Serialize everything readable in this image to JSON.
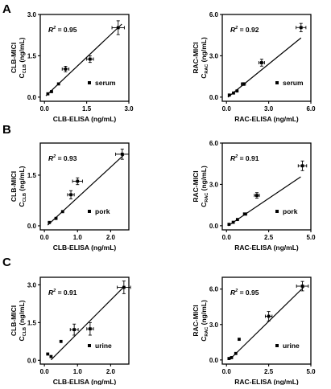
{
  "panel_letters": [
    "A",
    "B",
    "C"
  ],
  "chart_data": [
    {
      "type": "scatter",
      "row": 0,
      "col": 0,
      "ylabel_main": "CLB-MICI",
      "ylabel_c": "C",
      "ylabel_sub": "CLB",
      "ylabel_unit": "(ng/mL)",
      "xlabel": "CLB-ELISA (ng/mL)",
      "xlim": [
        -0.15,
        3.0
      ],
      "ylim": [
        -0.15,
        3.0
      ],
      "xticks": [
        0.0,
        1.5,
        3.0
      ],
      "xtick_labels": [
        "0.0",
        "1.5",
        "3.0"
      ],
      "yticks": [
        0.0,
        1.5,
        3.0
      ],
      "ytick_labels": [
        "0.0",
        "1.5",
        "3.0"
      ],
      "r2_label": "R",
      "r2_text": " = 0.95",
      "legend": "serum",
      "points": [
        {
          "x": 0.12,
          "y": 0.12,
          "xerr": 0.0,
          "yerr": 0.0
        },
        {
          "x": 0.25,
          "y": 0.2,
          "xerr": 0.0,
          "yerr": 0.0
        },
        {
          "x": 0.5,
          "y": 0.48,
          "xerr": 0.0,
          "yerr": 0.0
        },
        {
          "x": 0.75,
          "y": 1.02,
          "xerr": 0.12,
          "yerr": 0.1
        },
        {
          "x": 1.62,
          "y": 1.38,
          "xerr": 0.12,
          "yerr": 0.12
        },
        {
          "x": 2.62,
          "y": 2.52,
          "xerr": 0.22,
          "yerr": 0.25
        }
      ],
      "fit": {
        "x": [
          0.05,
          2.75
        ],
        "y": [
          0.05,
          2.65
        ]
      }
    },
    {
      "type": "scatter",
      "row": 0,
      "col": 1,
      "ylabel_main": "RAC-MICI",
      "ylabel_c": "C",
      "ylabel_sub": "RAC",
      "ylabel_unit": "(ng/mL)",
      "xlabel": "RAC-ELISA (ng/mL)",
      "xlim": [
        -0.3,
        6.0
      ],
      "ylim": [
        -0.3,
        6.0
      ],
      "xticks": [
        0.0,
        3.0,
        6.0
      ],
      "xtick_labels": [
        "0.0",
        "3.0",
        "6.0"
      ],
      "yticks": [
        0.0,
        3.0,
        6.0
      ],
      "ytick_labels": [
        "0.0",
        "3.0",
        "6.0"
      ],
      "r2_label": "R",
      "r2_text": " = 0.92",
      "legend": "serum",
      "points": [
        {
          "x": 0.2,
          "y": 0.15,
          "xerr": 0.0,
          "yerr": 0.0
        },
        {
          "x": 0.5,
          "y": 0.3,
          "xerr": 0.0,
          "yerr": 0.0
        },
        {
          "x": 0.75,
          "y": 0.45,
          "xerr": 0.0,
          "yerr": 0.0
        },
        {
          "x": 1.2,
          "y": 0.95,
          "xerr": 0.15,
          "yerr": 0.1
        },
        {
          "x": 2.5,
          "y": 2.5,
          "xerr": 0.2,
          "yerr": 0.25
        },
        {
          "x": 5.3,
          "y": 5.05,
          "xerr": 0.35,
          "yerr": 0.3
        }
      ],
      "fit": {
        "x": [
          0.1,
          5.3
        ],
        "y": [
          0.0,
          4.3
        ]
      }
    },
    {
      "type": "scatter",
      "row": 1,
      "col": 0,
      "ylabel_main": "CLB-MICI",
      "ylabel_c": "C",
      "ylabel_sub": "CLB",
      "ylabel_unit": "(ng/mL)",
      "xlabel": "CLB-ELISA (ng/mL)",
      "xlim": [
        -0.125,
        2.55
      ],
      "ylim": [
        -0.12,
        2.45
      ],
      "xticks": [
        0.0,
        1.0,
        2.0
      ],
      "xtick_labels": [
        "0.0",
        "1.0",
        "2.0"
      ],
      "yticks": [
        0.0,
        1.5
      ],
      "ytick_labels": [
        "0.0",
        "1.5"
      ],
      "r2_label": "R",
      "r2_text": " = 0.93",
      "legend": "pork",
      "points": [
        {
          "x": 0.15,
          "y": 0.1,
          "xerr": 0.0,
          "yerr": 0.0
        },
        {
          "x": 0.35,
          "y": 0.22,
          "xerr": 0.0,
          "yerr": 0.0
        },
        {
          "x": 0.55,
          "y": 0.42,
          "xerr": 0.0,
          "yerr": 0.0
        },
        {
          "x": 0.8,
          "y": 0.92,
          "xerr": 0.1,
          "yerr": 0.12
        },
        {
          "x": 1.0,
          "y": 1.32,
          "xerr": 0.15,
          "yerr": 0.1
        },
        {
          "x": 2.35,
          "y": 2.12,
          "xerr": 0.2,
          "yerr": 0.15
        }
      ],
      "fit": {
        "x": [
          0.1,
          2.4
        ],
        "y": [
          0.02,
          2.1
        ]
      }
    },
    {
      "type": "scatter",
      "row": 1,
      "col": 1,
      "ylabel_main": "RAC-MICI",
      "ylabel_c": "C",
      "ylabel_sub": "RAC",
      "ylabel_unit": "(ng/mL)",
      "xlabel": "RAC-ELISA (ng/mL)",
      "xlim": [
        -0.25,
        5.0
      ],
      "ylim": [
        -0.3,
        6.0
      ],
      "xticks": [
        0.0,
        2.5,
        5.0
      ],
      "xtick_labels": [
        "0.0",
        "2.5",
        "5.0"
      ],
      "yticks": [
        0.0,
        3.0,
        6.0
      ],
      "ytick_labels": [
        "0.0",
        "3.0",
        "6.0"
      ],
      "r2_label": "R",
      "r2_text": " = 0.91",
      "legend": "pork",
      "points": [
        {
          "x": 0.15,
          "y": 0.1,
          "xerr": 0.0,
          "yerr": 0.0
        },
        {
          "x": 0.4,
          "y": 0.25,
          "xerr": 0.0,
          "yerr": 0.0
        },
        {
          "x": 0.65,
          "y": 0.45,
          "xerr": 0.0,
          "yerr": 0.0
        },
        {
          "x": 1.1,
          "y": 0.85,
          "xerr": 0.1,
          "yerr": 0.08
        },
        {
          "x": 1.8,
          "y": 2.2,
          "xerr": 0.15,
          "yerr": 0.2
        },
        {
          "x": 4.5,
          "y": 4.35,
          "xerr": 0.25,
          "yerr": 0.35
        }
      ],
      "fit": {
        "x": [
          0.1,
          4.4
        ],
        "y": [
          0.0,
          3.55
        ]
      }
    },
    {
      "type": "scatter",
      "row": 2,
      "col": 0,
      "ylabel_main": "CLB-MICI",
      "ylabel_c": "C",
      "ylabel_sub": "CLB",
      "ylabel_unit": "(ng/mL)",
      "xlabel": "CLB-ELISA (ng/mL)",
      "xlim": [
        -0.125,
        2.55
      ],
      "ylim": [
        -0.15,
        3.3
      ],
      "xticks": [
        0.0,
        1.0,
        2.0
      ],
      "xtick_labels": [
        "0.0",
        "1.0",
        "2.0"
      ],
      "yticks": [
        0.0,
        1.5,
        3.0
      ],
      "ytick_labels": [
        "0.0",
        "1.5",
        "3.0"
      ],
      "r2_label": "R",
      "r2_text": " = 0.91",
      "legend": "urine",
      "points": [
        {
          "x": 0.1,
          "y": 0.25,
          "xerr": 0.0,
          "yerr": 0.0
        },
        {
          "x": 0.2,
          "y": 0.15,
          "xerr": 0.0,
          "yerr": 0.0
        },
        {
          "x": 0.5,
          "y": 0.75,
          "xerr": 0.0,
          "yerr": 0.0
        },
        {
          "x": 0.9,
          "y": 1.22,
          "xerr": 0.12,
          "yerr": 0.22
        },
        {
          "x": 1.38,
          "y": 1.25,
          "xerr": 0.1,
          "yerr": 0.25
        },
        {
          "x": 2.4,
          "y": 2.9,
          "xerr": 0.2,
          "yerr": 0.25
        }
      ],
      "fit": {
        "x": [
          0.2,
          2.4
        ],
        "y": [
          0.02,
          2.92
        ]
      }
    },
    {
      "type": "scatter",
      "row": 2,
      "col": 1,
      "ylabel_main": "RAC-MICI",
      "ylabel_c": "C",
      "ylabel_sub": "RAC",
      "ylabel_unit": "(ng/mL)",
      "xlabel": "RAC-ELISA (ng/mL)",
      "xlim": [
        -0.25,
        5.0
      ],
      "ylim": [
        -0.35,
        7.0
      ],
      "xticks": [
        0.0,
        2.5,
        5.0
      ],
      "xtick_labels": [
        "0.0",
        "2.5",
        "5.0"
      ],
      "yticks": [
        0.0,
        3.0,
        6.0
      ],
      "ytick_labels": [
        "0.0",
        "3.0",
        "6.0"
      ],
      "r2_label": "R",
      "r2_text": " = 0.95",
      "legend": "urine",
      "points": [
        {
          "x": 0.15,
          "y": 0.12,
          "xerr": 0.0,
          "yerr": 0.0
        },
        {
          "x": 0.3,
          "y": 0.2,
          "xerr": 0.0,
          "yerr": 0.0
        },
        {
          "x": 0.55,
          "y": 0.55,
          "xerr": 0.0,
          "yerr": 0.0
        },
        {
          "x": 0.75,
          "y": 1.75,
          "xerr": 0.0,
          "yerr": 0.0
        },
        {
          "x": 2.5,
          "y": 3.7,
          "xerr": 0.2,
          "yerr": 0.4
        },
        {
          "x": 4.5,
          "y": 6.25,
          "xerr": 0.35,
          "yerr": 0.4
        }
      ],
      "fit": {
        "x": [
          0.2,
          4.6
        ],
        "y": [
          0.05,
          6.2
        ]
      }
    }
  ]
}
